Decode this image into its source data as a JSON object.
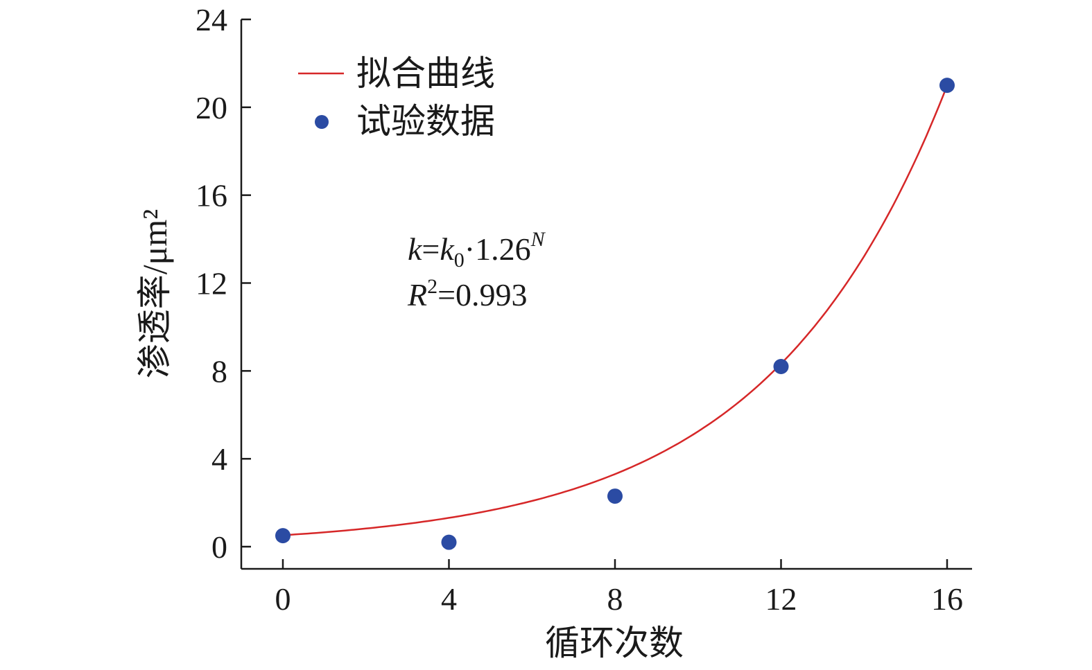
{
  "chart_data": {
    "type": "scatter",
    "xlabel": "循环次数",
    "ylabel": "渗透率/μm²",
    "xlim": [
      -1,
      17
    ],
    "ylim": [
      -1,
      24
    ],
    "xticks": [
      0,
      4,
      8,
      12,
      16
    ],
    "yticks": [
      0,
      4,
      8,
      12,
      16,
      20,
      24
    ],
    "grid": false,
    "legend_position": "top-left",
    "series": [
      {
        "name": "拟合曲线",
        "type": "line",
        "color": "#d62728",
        "model": {
          "base": 1.26,
          "k0": 0.52
        },
        "x_range": [
          0,
          16
        ]
      },
      {
        "name": "试验数据",
        "type": "scatter",
        "color": "#2b4ba3",
        "x": [
          0,
          4,
          8,
          12,
          16
        ],
        "y": [
          0.5,
          0.2,
          2.3,
          8.2,
          21.0
        ]
      }
    ],
    "annotation": {
      "equation": {
        "k": "k",
        "eq": "=",
        "k0_base": "k",
        "k0_sub": "0",
        "rest": "·1.26",
        "exp": "N"
      },
      "r2": {
        "r": "R",
        "sup": "2",
        "rest": "=0.993"
      }
    }
  }
}
